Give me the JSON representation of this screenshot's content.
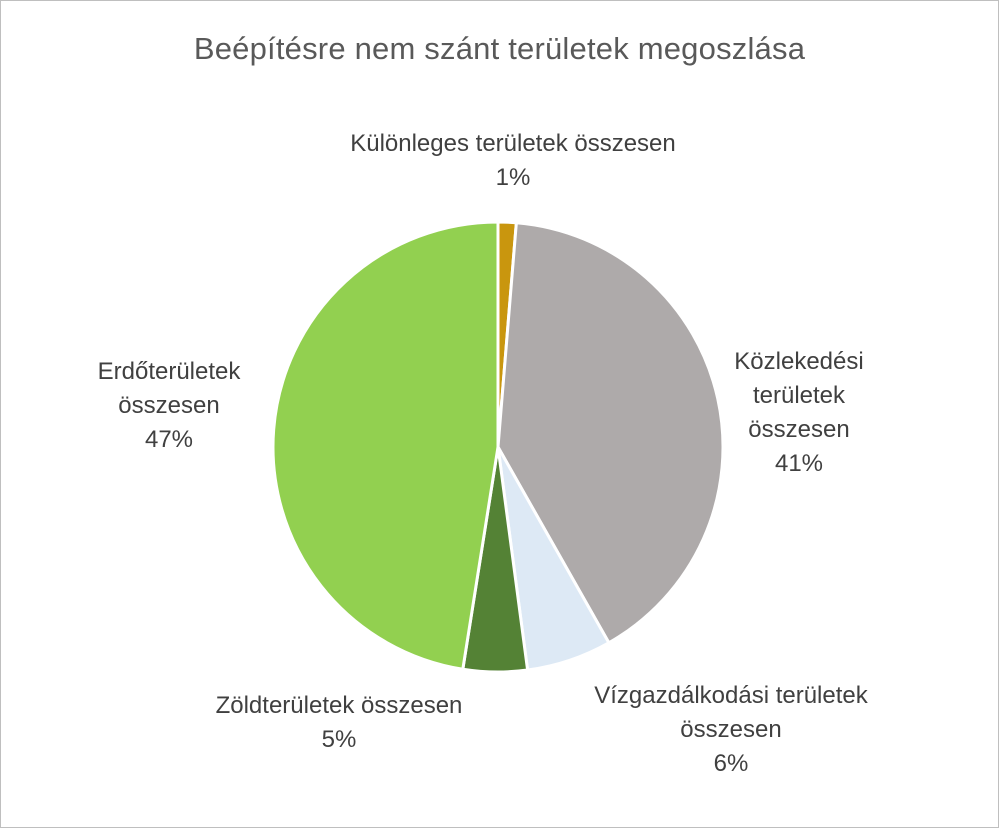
{
  "chart_data": {
    "type": "pie",
    "title": "Beépítésre nem szánt területek megoszlása",
    "start_angle_deg": 0,
    "direction": "clockwise",
    "slices": [
      {
        "name": "Különleges területek összesen",
        "label_lines": [
          "Különleges területek összesen"
        ],
        "value": 1.3,
        "display": "1%",
        "color": "#c9960e"
      },
      {
        "name": "Közlekedési területek összesen",
        "label_lines": [
          "Közlekedési",
          "területek",
          "összesen"
        ],
        "value": 40.5,
        "display": "41%",
        "color": "#aeaaaa"
      },
      {
        "name": "Vízgazdálkodási területek összesen",
        "label_lines": [
          "Vízgazdálkodási területek",
          "összesen"
        ],
        "value": 6.1,
        "display": "6%",
        "color": "#dde9f5"
      },
      {
        "name": "Zöldterületek összesen",
        "label_lines": [
          "Zöldterületek összesen"
        ],
        "value": 4.6,
        "display": "5%",
        "color": "#548235"
      },
      {
        "name": "Erdőterületek összesen",
        "label_lines": [
          "Erdőterületek",
          "összesen"
        ],
        "value": 47.5,
        "display": "47%",
        "color": "#92d050"
      }
    ]
  }
}
